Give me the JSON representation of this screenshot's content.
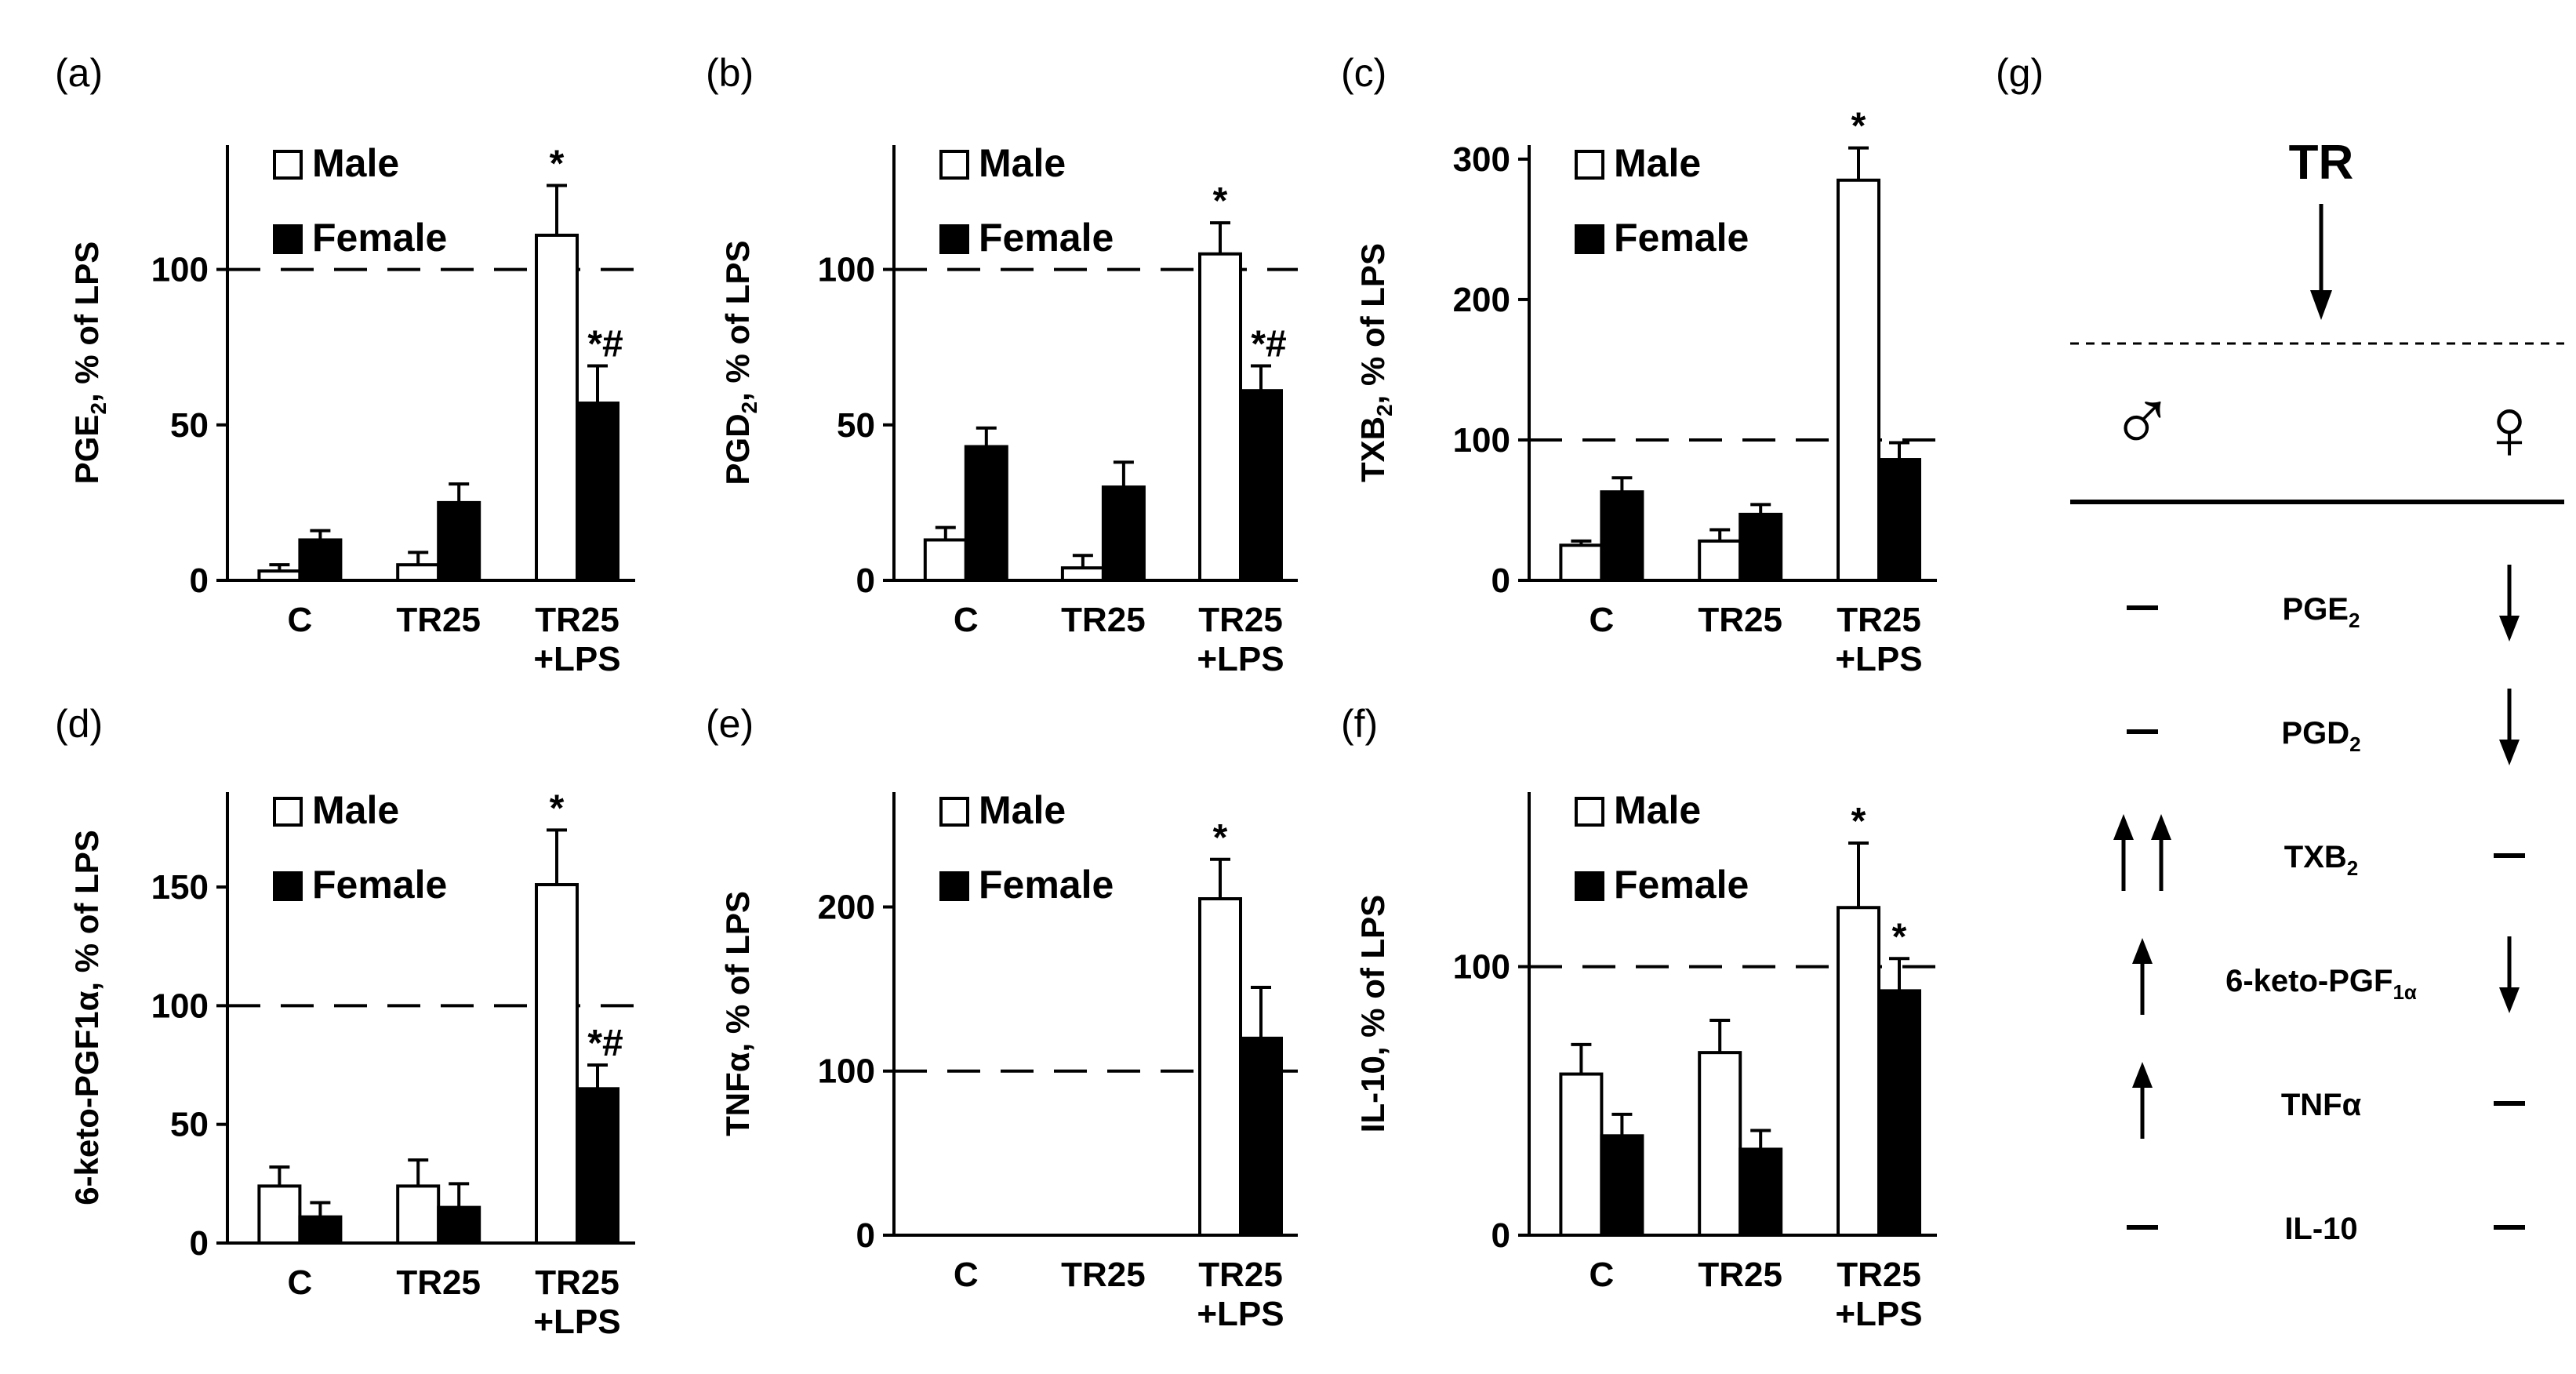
{
  "chart_data": [
    {
      "panel": "(a)",
      "type": "bar",
      "ylabel_main": "PGE",
      "ylabel_sub": "2",
      "ylabel_rest": ", % of LPS",
      "ylim": [
        0,
        140
      ],
      "yticks": [
        "0",
        "50",
        "100"
      ],
      "yticks_values": [
        0,
        50,
        100
      ],
      "reference_line": 100,
      "categories": [
        "C",
        "TR25",
        "TR25\n+LPS"
      ],
      "series": [
        {
          "name": "Male",
          "values": [
            3,
            5,
            111
          ],
          "errors": [
            2,
            4,
            16
          ],
          "marks": [
            "",
            "",
            "*"
          ]
        },
        {
          "name": "Female",
          "values": [
            13,
            25,
            57
          ],
          "errors": [
            3,
            6,
            12
          ],
          "marks": [
            "",
            "",
            "*#"
          ]
        }
      ]
    },
    {
      "panel": "(b)",
      "type": "bar",
      "ylabel_main": "PGD",
      "ylabel_sub": "2",
      "ylabel_rest": ", % of LPS",
      "ylim": [
        0,
        140
      ],
      "yticks": [
        "0",
        "50",
        "100"
      ],
      "yticks_values": [
        0,
        50,
        100
      ],
      "reference_line": 100,
      "categories": [
        "C",
        "TR25",
        "TR25\n+LPS"
      ],
      "series": [
        {
          "name": "Male",
          "values": [
            13,
            4,
            105
          ],
          "errors": [
            4,
            4,
            10
          ],
          "marks": [
            "",
            "",
            "*"
          ]
        },
        {
          "name": "Female",
          "values": [
            43,
            30,
            61
          ],
          "errors": [
            6,
            8,
            8
          ],
          "marks": [
            "",
            "",
            "*#"
          ]
        }
      ]
    },
    {
      "panel": "(c)",
      "type": "bar",
      "ylabel_main": "TXB",
      "ylabel_sub": "2",
      "ylabel_rest": ", % of LPS",
      "ylim": [
        0,
        310
      ],
      "yticks": [
        "0",
        "100",
        "200",
        "300"
      ],
      "yticks_values": [
        0,
        100,
        200,
        300
      ],
      "reference_line": 100,
      "categories": [
        "C",
        "TR25",
        "TR25\n+LPS"
      ],
      "series": [
        {
          "name": "Male",
          "values": [
            25,
            28,
            285
          ],
          "errors": [
            3,
            8,
            23
          ],
          "marks": [
            "",
            "",
            "*"
          ]
        },
        {
          "name": "Female",
          "values": [
            63,
            47,
            86
          ],
          "errors": [
            10,
            7,
            12
          ],
          "marks": [
            "",
            "",
            ""
          ]
        }
      ]
    },
    {
      "panel": "(d)",
      "type": "bar",
      "ylabel_main": "6-keto-PGF1α, % of LPS",
      "ylabel_sub": "",
      "ylabel_rest": "",
      "ylim": [
        0,
        190
      ],
      "yticks": [
        "0",
        "50",
        "100",
        "150"
      ],
      "yticks_values": [
        0,
        50,
        100,
        150
      ],
      "reference_line": 100,
      "categories": [
        "C",
        "TR25",
        "TR25\n+LPS"
      ],
      "series": [
        {
          "name": "Male",
          "values": [
            24,
            24,
            151
          ],
          "errors": [
            8,
            11,
            23
          ],
          "marks": [
            "",
            "",
            "*"
          ]
        },
        {
          "name": "Female",
          "values": [
            11,
            15,
            65
          ],
          "errors": [
            6,
            10,
            10
          ],
          "marks": [
            "",
            "",
            "*#"
          ]
        }
      ]
    },
    {
      "panel": "(e)",
      "type": "bar",
      "ylabel_main": "TNFα, % of LPS",
      "ylabel_sub": "",
      "ylabel_rest": "",
      "ylim": [
        0,
        270
      ],
      "yticks": [
        "0",
        "100",
        "200"
      ],
      "yticks_values": [
        0,
        100,
        200
      ],
      "reference_line": 100,
      "categories": [
        "C",
        "TR25",
        "TR25\n+LPS"
      ],
      "series": [
        {
          "name": "Male",
          "values": [
            0,
            0,
            205
          ],
          "errors": [
            0,
            0,
            24
          ],
          "marks": [
            "",
            "",
            "*"
          ]
        },
        {
          "name": "Female",
          "values": [
            0,
            0,
            120
          ],
          "errors": [
            0,
            0,
            31
          ],
          "marks": [
            "",
            "",
            ""
          ]
        }
      ]
    },
    {
      "panel": "(f)",
      "type": "bar",
      "ylabel_main": "IL-10, % of LPS",
      "ylabel_sub": "",
      "ylabel_rest": "",
      "ylim": [
        0,
        165
      ],
      "yticks": [
        "0",
        "100"
      ],
      "yticks_values": [
        0,
        100
      ],
      "reference_line": 100,
      "categories": [
        "C",
        "TR25",
        "TR25\n+LPS"
      ],
      "series": [
        {
          "name": "Male",
          "values": [
            60,
            68,
            122
          ],
          "errors": [
            11,
            12,
            24
          ],
          "marks": [
            "",
            "",
            "*"
          ]
        },
        {
          "name": "Female",
          "values": [
            37,
            32,
            91
          ],
          "errors": [
            8,
            7,
            12
          ],
          "marks": [
            "",
            "",
            "*"
          ]
        }
      ]
    }
  ],
  "legend": {
    "male": "Male",
    "female": "Female"
  },
  "schematic": {
    "panel": "(g)",
    "title": "TR",
    "male_symbol": "♂",
    "female_symbol": "♀",
    "rows": [
      {
        "main": "PGE",
        "sub": "2",
        "male": "–",
        "female": "↓"
      },
      {
        "main": "PGD",
        "sub": "2",
        "male": "–",
        "female": "↓"
      },
      {
        "main": "TXB",
        "sub": "2",
        "male": "↑↑",
        "female": "–"
      },
      {
        "main": "6-keto-PGF",
        "sub": "1α",
        "male": "↑",
        "female": "↓"
      },
      {
        "main": "TNFα",
        "sub": "",
        "male": "↑",
        "female": "–"
      },
      {
        "main": "IL-10",
        "sub": "",
        "male": "–",
        "female": "–"
      }
    ]
  }
}
